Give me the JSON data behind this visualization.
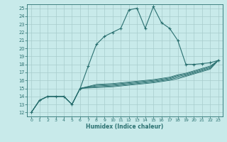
{
  "xlabel": "Humidex (Indice chaleur)",
  "xlim": [
    -0.5,
    23.5
  ],
  "ylim": [
    11.5,
    25.5
  ],
  "xticks": [
    0,
    1,
    2,
    3,
    4,
    5,
    6,
    7,
    8,
    9,
    10,
    11,
    12,
    13,
    14,
    15,
    16,
    17,
    18,
    19,
    20,
    21,
    22,
    23
  ],
  "yticks": [
    12,
    13,
    14,
    15,
    16,
    17,
    18,
    19,
    20,
    21,
    22,
    23,
    24,
    25
  ],
  "bg_color": "#c8eaea",
  "grid_color": "#a8cccc",
  "line_color": "#2a7070",
  "main_line": {
    "x": [
      0,
      1,
      2,
      3,
      4,
      5,
      6,
      7,
      8,
      9,
      10,
      11,
      12,
      13,
      14,
      15,
      16,
      17,
      18,
      19,
      20,
      21,
      22,
      23
    ],
    "y": [
      12,
      13.5,
      14.0,
      14.0,
      14.0,
      13.0,
      15.0,
      17.8,
      20.5,
      21.5,
      22.0,
      22.5,
      24.8,
      25.0,
      22.5,
      25.2,
      23.2,
      22.5,
      21.0,
      18.0,
      18.0,
      18.1,
      18.2,
      18.5
    ]
  },
  "flat_lines": [
    {
      "x": [
        0,
        1,
        2,
        3,
        4,
        5,
        6,
        7,
        8,
        9,
        10,
        11,
        12,
        13,
        14,
        15,
        16,
        17,
        18,
        19,
        20,
        21,
        22,
        23
      ],
      "y": [
        12,
        13.5,
        14.0,
        14.0,
        14.0,
        13.0,
        15.0,
        15.05,
        15.1,
        15.15,
        15.2,
        15.3,
        15.4,
        15.5,
        15.6,
        15.7,
        15.85,
        16.0,
        16.2,
        16.5,
        16.8,
        17.1,
        17.4,
        18.5
      ]
    },
    {
      "x": [
        0,
        1,
        2,
        3,
        4,
        5,
        6,
        7,
        8,
        9,
        10,
        11,
        12,
        13,
        14,
        15,
        16,
        17,
        18,
        19,
        20,
        21,
        22,
        23
      ],
      "y": [
        12,
        13.5,
        14.0,
        14.0,
        14.0,
        13.0,
        15.0,
        15.1,
        15.2,
        15.25,
        15.3,
        15.4,
        15.5,
        15.6,
        15.7,
        15.8,
        15.95,
        16.1,
        16.35,
        16.6,
        16.9,
        17.2,
        17.5,
        18.5
      ]
    },
    {
      "x": [
        0,
        1,
        2,
        3,
        4,
        5,
        6,
        7,
        8,
        9,
        10,
        11,
        12,
        13,
        14,
        15,
        16,
        17,
        18,
        19,
        20,
        21,
        22,
        23
      ],
      "y": [
        12,
        13.5,
        14.0,
        14.0,
        14.0,
        13.0,
        15.0,
        15.15,
        15.3,
        15.35,
        15.4,
        15.5,
        15.6,
        15.7,
        15.8,
        15.9,
        16.05,
        16.2,
        16.5,
        16.7,
        17.0,
        17.3,
        17.6,
        18.5
      ]
    },
    {
      "x": [
        0,
        1,
        2,
        3,
        4,
        5,
        6,
        7,
        8,
        9,
        10,
        11,
        12,
        13,
        14,
        15,
        16,
        17,
        18,
        19,
        20,
        21,
        22,
        23
      ],
      "y": [
        12,
        13.5,
        14.0,
        14.0,
        14.0,
        13.0,
        15.0,
        15.2,
        15.4,
        15.45,
        15.5,
        15.6,
        15.7,
        15.8,
        15.9,
        16.0,
        16.15,
        16.3,
        16.6,
        16.8,
        17.1,
        17.4,
        17.7,
        18.5
      ]
    },
    {
      "x": [
        0,
        1,
        2,
        3,
        4,
        5,
        6,
        7,
        8,
        9,
        10,
        11,
        12,
        13,
        14,
        15,
        16,
        17,
        18,
        19,
        20,
        21,
        22,
        23
      ],
      "y": [
        12,
        13.5,
        14.0,
        14.0,
        14.0,
        13.0,
        15.0,
        15.25,
        15.5,
        15.55,
        15.6,
        15.7,
        15.8,
        15.9,
        16.0,
        16.1,
        16.25,
        16.4,
        16.7,
        16.9,
        17.2,
        17.5,
        17.8,
        18.5
      ]
    }
  ]
}
